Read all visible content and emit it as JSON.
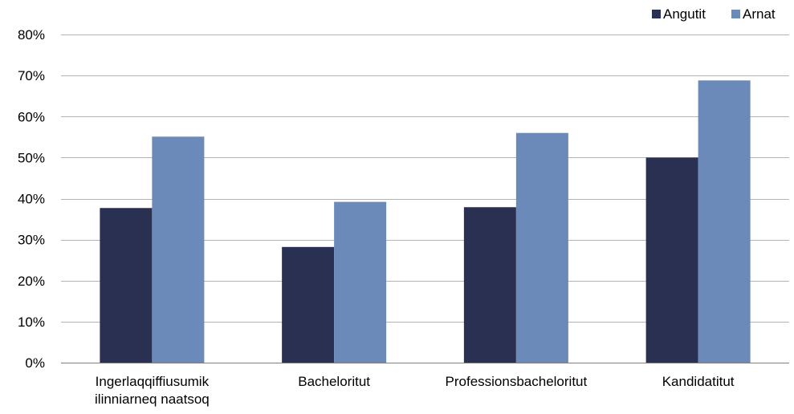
{
  "chart_data": {
    "type": "bar",
    "categories": [
      [
        "Ingerlaqqiffiusumik",
        "ilinniarneq naatsoq"
      ],
      [
        "Bacheloritut"
      ],
      [
        "Professionsbacheloritut"
      ],
      [
        "Kandidatitut"
      ]
    ],
    "series": [
      {
        "name": "Angutit",
        "color": "#2a3052",
        "values": [
          37.7,
          28.2,
          37.9,
          50.0
        ]
      },
      {
        "name": "Arnat",
        "color": "#6b89b9",
        "values": [
          55.1,
          39.2,
          56.0,
          68.8
        ]
      }
    ],
    "ylim": [
      0,
      80
    ],
    "yticks": [
      0,
      10,
      20,
      30,
      40,
      50,
      60,
      70,
      80
    ],
    "ytick_labels": [
      "0%",
      "10%",
      "20%",
      "30%",
      "40%",
      "50%",
      "60%",
      "70%",
      "80%"
    ],
    "grid": true,
    "legend_position": "top-right",
    "title": "",
    "xlabel": "",
    "ylabel": ""
  }
}
